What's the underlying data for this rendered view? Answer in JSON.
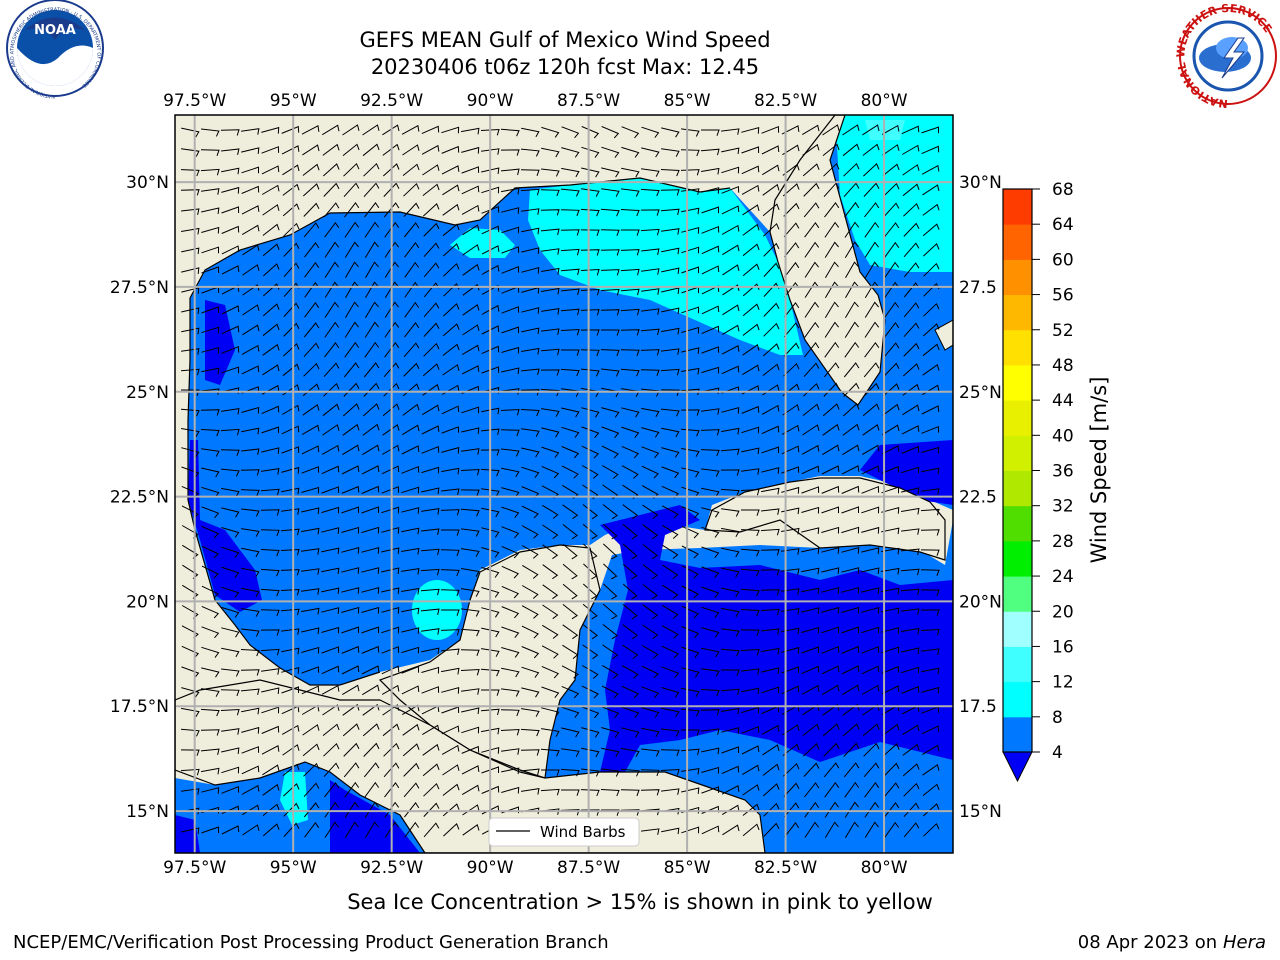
{
  "title": {
    "line1": "GEFS MEAN Gulf of Mexico Wind Speed",
    "line2": "20230406 t06z 120h fcst   Max: 12.45"
  },
  "logos": {
    "left": {
      "name": "NOAA",
      "ring_text": "NATIONAL OCEANIC AND ATMOSPHERIC ADMINISTRATION · U.S. DEPARTMENT OF COMMERCE"
    },
    "right": {
      "name": "NATIONAL WEATHER SERVICE"
    }
  },
  "map": {
    "lon_labels": [
      "97.5°W",
      "95°W",
      "92.5°W",
      "90°W",
      "87.5°W",
      "85°W",
      "82.5°W",
      "80°W"
    ],
    "lon_values": [
      -97.5,
      -95,
      -92.5,
      -90,
      -87.5,
      -85,
      -82.5,
      -80
    ],
    "lat_labels": [
      "30°N",
      "27.5°N",
      "25°N",
      "22.5°N",
      "20°N",
      "17.5°N",
      "15°N"
    ],
    "lat_values": [
      30,
      27.5,
      25,
      22.5,
      20,
      17.5,
      15
    ],
    "lat_labels_right": [
      "30°N",
      "27.5",
      "25°N",
      "22.5",
      "20°N",
      "17.5",
      "15°N"
    ],
    "extent": {
      "lon_min": -98,
      "lon_max": -78.25,
      "lat_min": 14,
      "lat_max": 31.6
    },
    "legend": "Wind Barbs",
    "colors": {
      "land": "#efeddc",
      "water_4_8": "#0078ff",
      "water_below_4": "#0000f5",
      "water_8_12": "#00ffff",
      "water_12_16": "#40ffff"
    }
  },
  "colorbar": {
    "label": "Wind Speed [m/s]",
    "ticks": [
      "4",
      "8",
      "12",
      "16",
      "20",
      "24",
      "28",
      "32",
      "36",
      "40",
      "44",
      "48",
      "52",
      "56",
      "60",
      "64",
      "68"
    ],
    "colors": [
      "#0078ff",
      "#00ffff",
      "#40ffff",
      "#a0ffff",
      "#50ff80",
      "#00ee00",
      "#50dd00",
      "#b0e800",
      "#d0f000",
      "#e8f000",
      "#ffff00",
      "#ffe000",
      "#ffb800",
      "#ff9000",
      "#ff6400",
      "#ff3c00",
      "#ff0000"
    ],
    "under_color": "#0000f5"
  },
  "footer": {
    "ice_note": "Sea Ice Concentration > 15% is shown in pink to yellow",
    "credit": "NCEP/EMC/Verification Post Processing Product Generation Branch",
    "date": "08 Apr 2023 on",
    "host": "Hera"
  }
}
